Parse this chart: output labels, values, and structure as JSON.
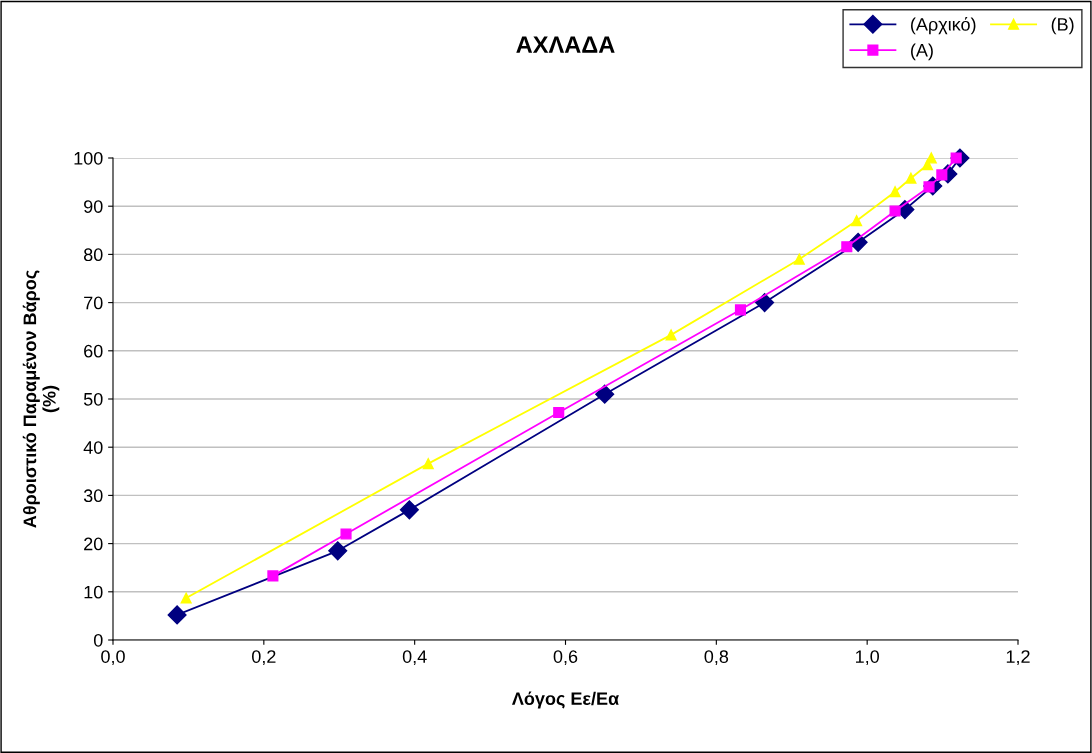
{
  "chart_data": {
    "type": "line",
    "title": "ΑΧΛΑΔΑ",
    "xlabel": "Λόγος Εε/Εα",
    "ylabel": "Αθροιστικό Παραμένον Βάρος\n(%)",
    "xlim": [
      0,
      1.2
    ],
    "xticks": [
      {
        "value": 0,
        "label": "0,0"
      },
      {
        "value": 0.2,
        "label": "0,2"
      },
      {
        "value": 0.4,
        "label": "0,4"
      },
      {
        "value": 0.6,
        "label": "0,6"
      },
      {
        "value": 0.8,
        "label": "0,8"
      },
      {
        "value": 1.0,
        "label": "1,0"
      },
      {
        "value": 1.2,
        "label": "1,2"
      }
    ],
    "ylim": [
      0,
      100
    ],
    "yticks": [
      0,
      10,
      20,
      30,
      40,
      50,
      60,
      70,
      80,
      90,
      100
    ],
    "grid": "y",
    "legend": "top right",
    "series": [
      {
        "name": "(Αρχικό)",
        "color": "#000080",
        "marker": "diamond",
        "x": [
          0.085,
          0.298,
          0.393,
          0.652,
          0.864,
          0.988,
          1.05,
          1.087,
          1.107,
          1.123
        ],
        "values": [
          5.2,
          18.5,
          27,
          51,
          70,
          82.5,
          89.3,
          94.2,
          96.7,
          100
        ]
      },
      {
        "name": "(A)",
        "color": "#ff00ff",
        "marker": "square",
        "x": [
          0.212,
          0.309,
          0.591,
          0.832,
          0.973,
          1.037,
          1.082,
          1.099,
          1.118
        ],
        "values": [
          13.3,
          22,
          47.2,
          68.5,
          81.6,
          89,
          94,
          96.5,
          100
        ]
      },
      {
        "name": "(B)",
        "color": "#ffff00",
        "marker": "triangle",
        "x": [
          0.097,
          0.418,
          0.74,
          0.91,
          0.986,
          1.037,
          1.058,
          1.08,
          1.085
        ],
        "values": [
          8.7,
          36.6,
          63.3,
          79,
          87,
          93,
          95.8,
          98.6,
          100
        ]
      }
    ]
  }
}
